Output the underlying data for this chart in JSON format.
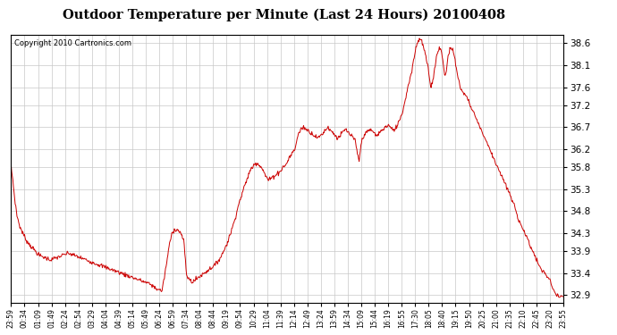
{
  "title": "Outdoor Temperature per Minute (Last 24 Hours) 20100408",
  "copyright_text": "Copyright 2010 Cartronics.com",
  "line_color": "#cc0000",
  "background_color": "#ffffff",
  "grid_color": "#c8c8c8",
  "y_ticks": [
    32.9,
    33.4,
    33.9,
    34.3,
    34.8,
    35.3,
    35.8,
    36.2,
    36.7,
    37.2,
    37.6,
    38.1,
    38.6
  ],
  "ylim": [
    32.72,
    38.78
  ],
  "x_labels": [
    "23:59",
    "00:34",
    "01:09",
    "01:49",
    "02:24",
    "02:54",
    "03:29",
    "04:04",
    "04:39",
    "05:14",
    "05:49",
    "06:24",
    "06:59",
    "07:34",
    "08:04",
    "08:44",
    "09:19",
    "09:54",
    "10:29",
    "11:04",
    "11:39",
    "12:14",
    "12:49",
    "13:24",
    "13:59",
    "14:34",
    "15:09",
    "15:44",
    "16:19",
    "16:55",
    "17:30",
    "18:05",
    "18:40",
    "19:15",
    "19:50",
    "20:25",
    "21:00",
    "21:35",
    "22:10",
    "22:45",
    "23:20",
    "23:55"
  ],
  "key_points": [
    [
      0,
      35.8
    ],
    [
      3,
      35.5
    ],
    [
      6,
      35.1
    ],
    [
      10,
      34.7
    ],
    [
      15,
      34.45
    ],
    [
      20,
      34.3
    ],
    [
      28,
      34.1
    ],
    [
      38,
      33.95
    ],
    [
      48,
      33.8
    ],
    [
      58,
      33.75
    ],
    [
      68,
      33.7
    ],
    [
      78,
      33.75
    ],
    [
      88,
      33.8
    ],
    [
      98,
      33.85
    ],
    [
      108,
      33.8
    ],
    [
      118,
      33.75
    ],
    [
      128,
      33.7
    ],
    [
      138,
      33.65
    ],
    [
      148,
      33.6
    ],
    [
      158,
      33.55
    ],
    [
      168,
      33.5
    ],
    [
      178,
      33.45
    ],
    [
      188,
      33.4
    ],
    [
      198,
      33.35
    ],
    [
      208,
      33.3
    ],
    [
      218,
      33.25
    ],
    [
      228,
      33.2
    ],
    [
      238,
      33.15
    ],
    [
      248,
      33.05
    ],
    [
      258,
      33.0
    ],
    [
      265,
      33.55
    ],
    [
      270,
      34.0
    ],
    [
      275,
      34.3
    ],
    [
      280,
      34.4
    ],
    [
      288,
      34.35
    ],
    [
      295,
      34.15
    ],
    [
      300,
      33.35
    ],
    [
      305,
      33.25
    ],
    [
      310,
      33.2
    ],
    [
      315,
      33.25
    ],
    [
      320,
      33.3
    ],
    [
      325,
      33.35
    ],
    [
      330,
      33.4
    ],
    [
      340,
      33.5
    ],
    [
      350,
      33.6
    ],
    [
      360,
      33.8
    ],
    [
      370,
      34.1
    ],
    [
      380,
      34.5
    ],
    [
      390,
      35.0
    ],
    [
      400,
      35.4
    ],
    [
      408,
      35.7
    ],
    [
      415,
      35.85
    ],
    [
      420,
      35.9
    ],
    [
      428,
      35.8
    ],
    [
      435,
      35.6
    ],
    [
      440,
      35.5
    ],
    [
      445,
      35.55
    ],
    [
      450,
      35.6
    ],
    [
      455,
      35.65
    ],
    [
      460,
      35.7
    ],
    [
      465,
      35.8
    ],
    [
      470,
      35.85
    ],
    [
      475,
      36.0
    ],
    [
      480,
      36.1
    ],
    [
      485,
      36.2
    ],
    [
      490,
      36.5
    ],
    [
      495,
      36.65
    ],
    [
      500,
      36.7
    ],
    [
      505,
      36.65
    ],
    [
      510,
      36.6
    ],
    [
      515,
      36.55
    ],
    [
      520,
      36.5
    ],
    [
      525,
      36.45
    ],
    [
      528,
      36.5
    ],
    [
      532,
      36.55
    ],
    [
      535,
      36.6
    ],
    [
      538,
      36.65
    ],
    [
      542,
      36.7
    ],
    [
      545,
      36.65
    ],
    [
      548,
      36.6
    ],
    [
      552,
      36.55
    ],
    [
      555,
      36.5
    ],
    [
      558,
      36.45
    ],
    [
      562,
      36.5
    ],
    [
      565,
      36.55
    ],
    [
      568,
      36.6
    ],
    [
      572,
      36.65
    ],
    [
      575,
      36.6
    ],
    [
      578,
      36.55
    ],
    [
      582,
      36.5
    ],
    [
      585,
      36.45
    ],
    [
      588,
      36.4
    ],
    [
      592,
      36.1
    ],
    [
      595,
      35.95
    ],
    [
      600,
      36.45
    ],
    [
      605,
      36.55
    ],
    [
      610,
      36.6
    ],
    [
      615,
      36.65
    ],
    [
      618,
      36.6
    ],
    [
      622,
      36.55
    ],
    [
      625,
      36.5
    ],
    [
      628,
      36.55
    ],
    [
      632,
      36.6
    ],
    [
      635,
      36.65
    ],
    [
      640,
      36.7
    ],
    [
      645,
      36.75
    ],
    [
      648,
      36.7
    ],
    [
      652,
      36.65
    ],
    [
      655,
      36.6
    ],
    [
      658,
      36.7
    ],
    [
      662,
      36.8
    ],
    [
      665,
      36.9
    ],
    [
      668,
      37.0
    ],
    [
      672,
      37.2
    ],
    [
      675,
      37.4
    ],
    [
      678,
      37.6
    ],
    [
      682,
      37.8
    ],
    [
      685,
      38.0
    ],
    [
      688,
      38.2
    ],
    [
      690,
      38.35
    ],
    [
      692,
      38.5
    ],
    [
      694,
      38.6
    ],
    [
      696,
      38.65
    ],
    [
      698,
      38.7
    ],
    [
      700,
      38.68
    ],
    [
      702,
      38.65
    ],
    [
      705,
      38.5
    ],
    [
      708,
      38.35
    ],
    [
      712,
      38.1
    ],
    [
      715,
      37.8
    ],
    [
      718,
      37.6
    ],
    [
      722,
      37.85
    ],
    [
      725,
      38.1
    ],
    [
      728,
      38.35
    ],
    [
      730,
      38.45
    ],
    [
      732,
      38.5
    ],
    [
      734,
      38.45
    ],
    [
      736,
      38.4
    ],
    [
      738,
      38.2
    ],
    [
      740,
      38.0
    ],
    [
      742,
      37.85
    ],
    [
      745,
      38.1
    ],
    [
      748,
      38.35
    ],
    [
      750,
      38.45
    ],
    [
      752,
      38.5
    ],
    [
      755,
      38.45
    ],
    [
      758,
      38.3
    ],
    [
      760,
      38.1
    ],
    [
      763,
      37.9
    ],
    [
      766,
      37.7
    ],
    [
      768,
      37.6
    ],
    [
      770,
      37.55
    ],
    [
      772,
      37.5
    ],
    [
      775,
      37.45
    ],
    [
      778,
      37.4
    ],
    [
      782,
      37.3
    ],
    [
      785,
      37.2
    ],
    [
      788,
      37.1
    ],
    [
      792,
      37.0
    ],
    [
      795,
      36.9
    ],
    [
      798,
      36.8
    ],
    [
      802,
      36.7
    ],
    [
      805,
      36.6
    ],
    [
      808,
      36.5
    ],
    [
      812,
      36.4
    ],
    [
      815,
      36.3
    ],
    [
      818,
      36.2
    ],
    [
      822,
      36.1
    ],
    [
      825,
      36.0
    ],
    [
      828,
      35.9
    ],
    [
      832,
      35.8
    ],
    [
      835,
      35.7
    ],
    [
      838,
      35.6
    ],
    [
      842,
      35.5
    ],
    [
      845,
      35.4
    ],
    [
      848,
      35.3
    ],
    [
      852,
      35.2
    ],
    [
      855,
      35.1
    ],
    [
      858,
      35.0
    ],
    [
      862,
      34.85
    ],
    [
      865,
      34.7
    ],
    [
      868,
      34.6
    ],
    [
      872,
      34.5
    ],
    [
      875,
      34.4
    ],
    [
      878,
      34.3
    ],
    [
      882,
      34.2
    ],
    [
      885,
      34.1
    ],
    [
      888,
      34.0
    ],
    [
      892,
      33.9
    ],
    [
      895,
      33.8
    ],
    [
      898,
      33.7
    ],
    [
      902,
      33.6
    ],
    [
      905,
      33.5
    ],
    [
      908,
      33.45
    ],
    [
      912,
      33.4
    ],
    [
      915,
      33.35
    ],
    [
      918,
      33.3
    ],
    [
      922,
      33.2
    ],
    [
      925,
      33.1
    ],
    [
      928,
      33.0
    ],
    [
      932,
      32.9
    ],
    [
      938,
      32.87
    ],
    [
      944,
      32.84
    ]
  ]
}
